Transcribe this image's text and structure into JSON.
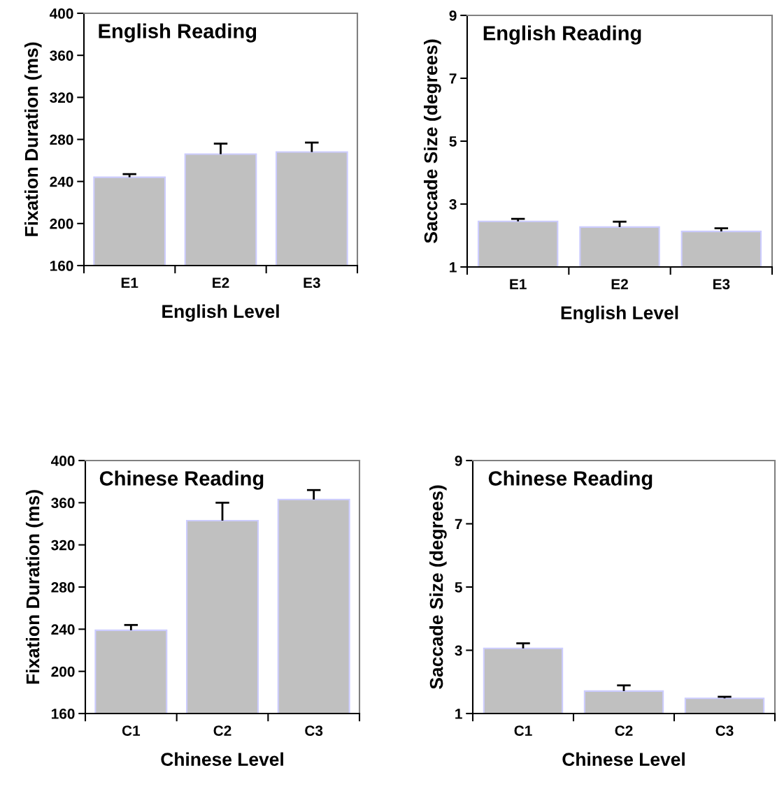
{
  "chart_data": [
    {
      "type": "bar",
      "title": "English Reading",
      "xlabel": "English Level",
      "ylabel": "Fixation Duration (ms)",
      "categories": [
        "E1",
        "E2",
        "E3"
      ],
      "values": [
        244,
        266,
        268
      ],
      "errors": [
        [
          244,
          247
        ],
        [
          266,
          276
        ],
        [
          268,
          277
        ]
      ],
      "color": "#c0c0c0",
      "ylim": [
        160,
        400
      ],
      "yticks": [
        160,
        200,
        240,
        280,
        320,
        360,
        400
      ],
      "grid": false
    },
    {
      "type": "bar",
      "title": "English Reading",
      "xlabel": "English Level",
      "ylabel": "Saccade Size (degrees)",
      "categories": [
        "E1",
        "E2",
        "E3"
      ],
      "values": [
        2.45,
        2.27,
        2.13
      ],
      "errors": [
        [
          2.45,
          2.53
        ],
        [
          2.27,
          2.44
        ],
        [
          2.13,
          2.23
        ]
      ],
      "color": "#c0c0c0",
      "ylim": [
        1,
        9
      ],
      "yticks": [
        1,
        3,
        5,
        7,
        9
      ],
      "grid": false
    },
    {
      "type": "bar",
      "title": "Chinese Reading",
      "xlabel": "Chinese Level",
      "ylabel": "Fixation Duration (ms)",
      "categories": [
        "C1",
        "C2",
        "C3"
      ],
      "values": [
        239,
        343,
        363
      ],
      "errors": [
        [
          239,
          244
        ],
        [
          343,
          360
        ],
        [
          363,
          372
        ]
      ],
      "color": "#c0c0c0",
      "ylim": [
        160,
        400
      ],
      "yticks": [
        160,
        200,
        240,
        280,
        320,
        360,
        400
      ],
      "grid": false
    },
    {
      "type": "bar",
      "title": "Chinese Reading",
      "xlabel": "Chinese Level",
      "ylabel": "Saccade Size (degrees)",
      "categories": [
        "C1",
        "C2",
        "C3"
      ],
      "values": [
        3.06,
        1.71,
        1.48
      ],
      "errors": [
        [
          3.06,
          3.22
        ],
        [
          1.71,
          1.89
        ],
        [
          1.48,
          1.53
        ]
      ],
      "color": "#c0c0c0",
      "ylim": [
        1,
        9
      ],
      "yticks": [
        1,
        3,
        5,
        7,
        9
      ],
      "grid": false
    }
  ]
}
